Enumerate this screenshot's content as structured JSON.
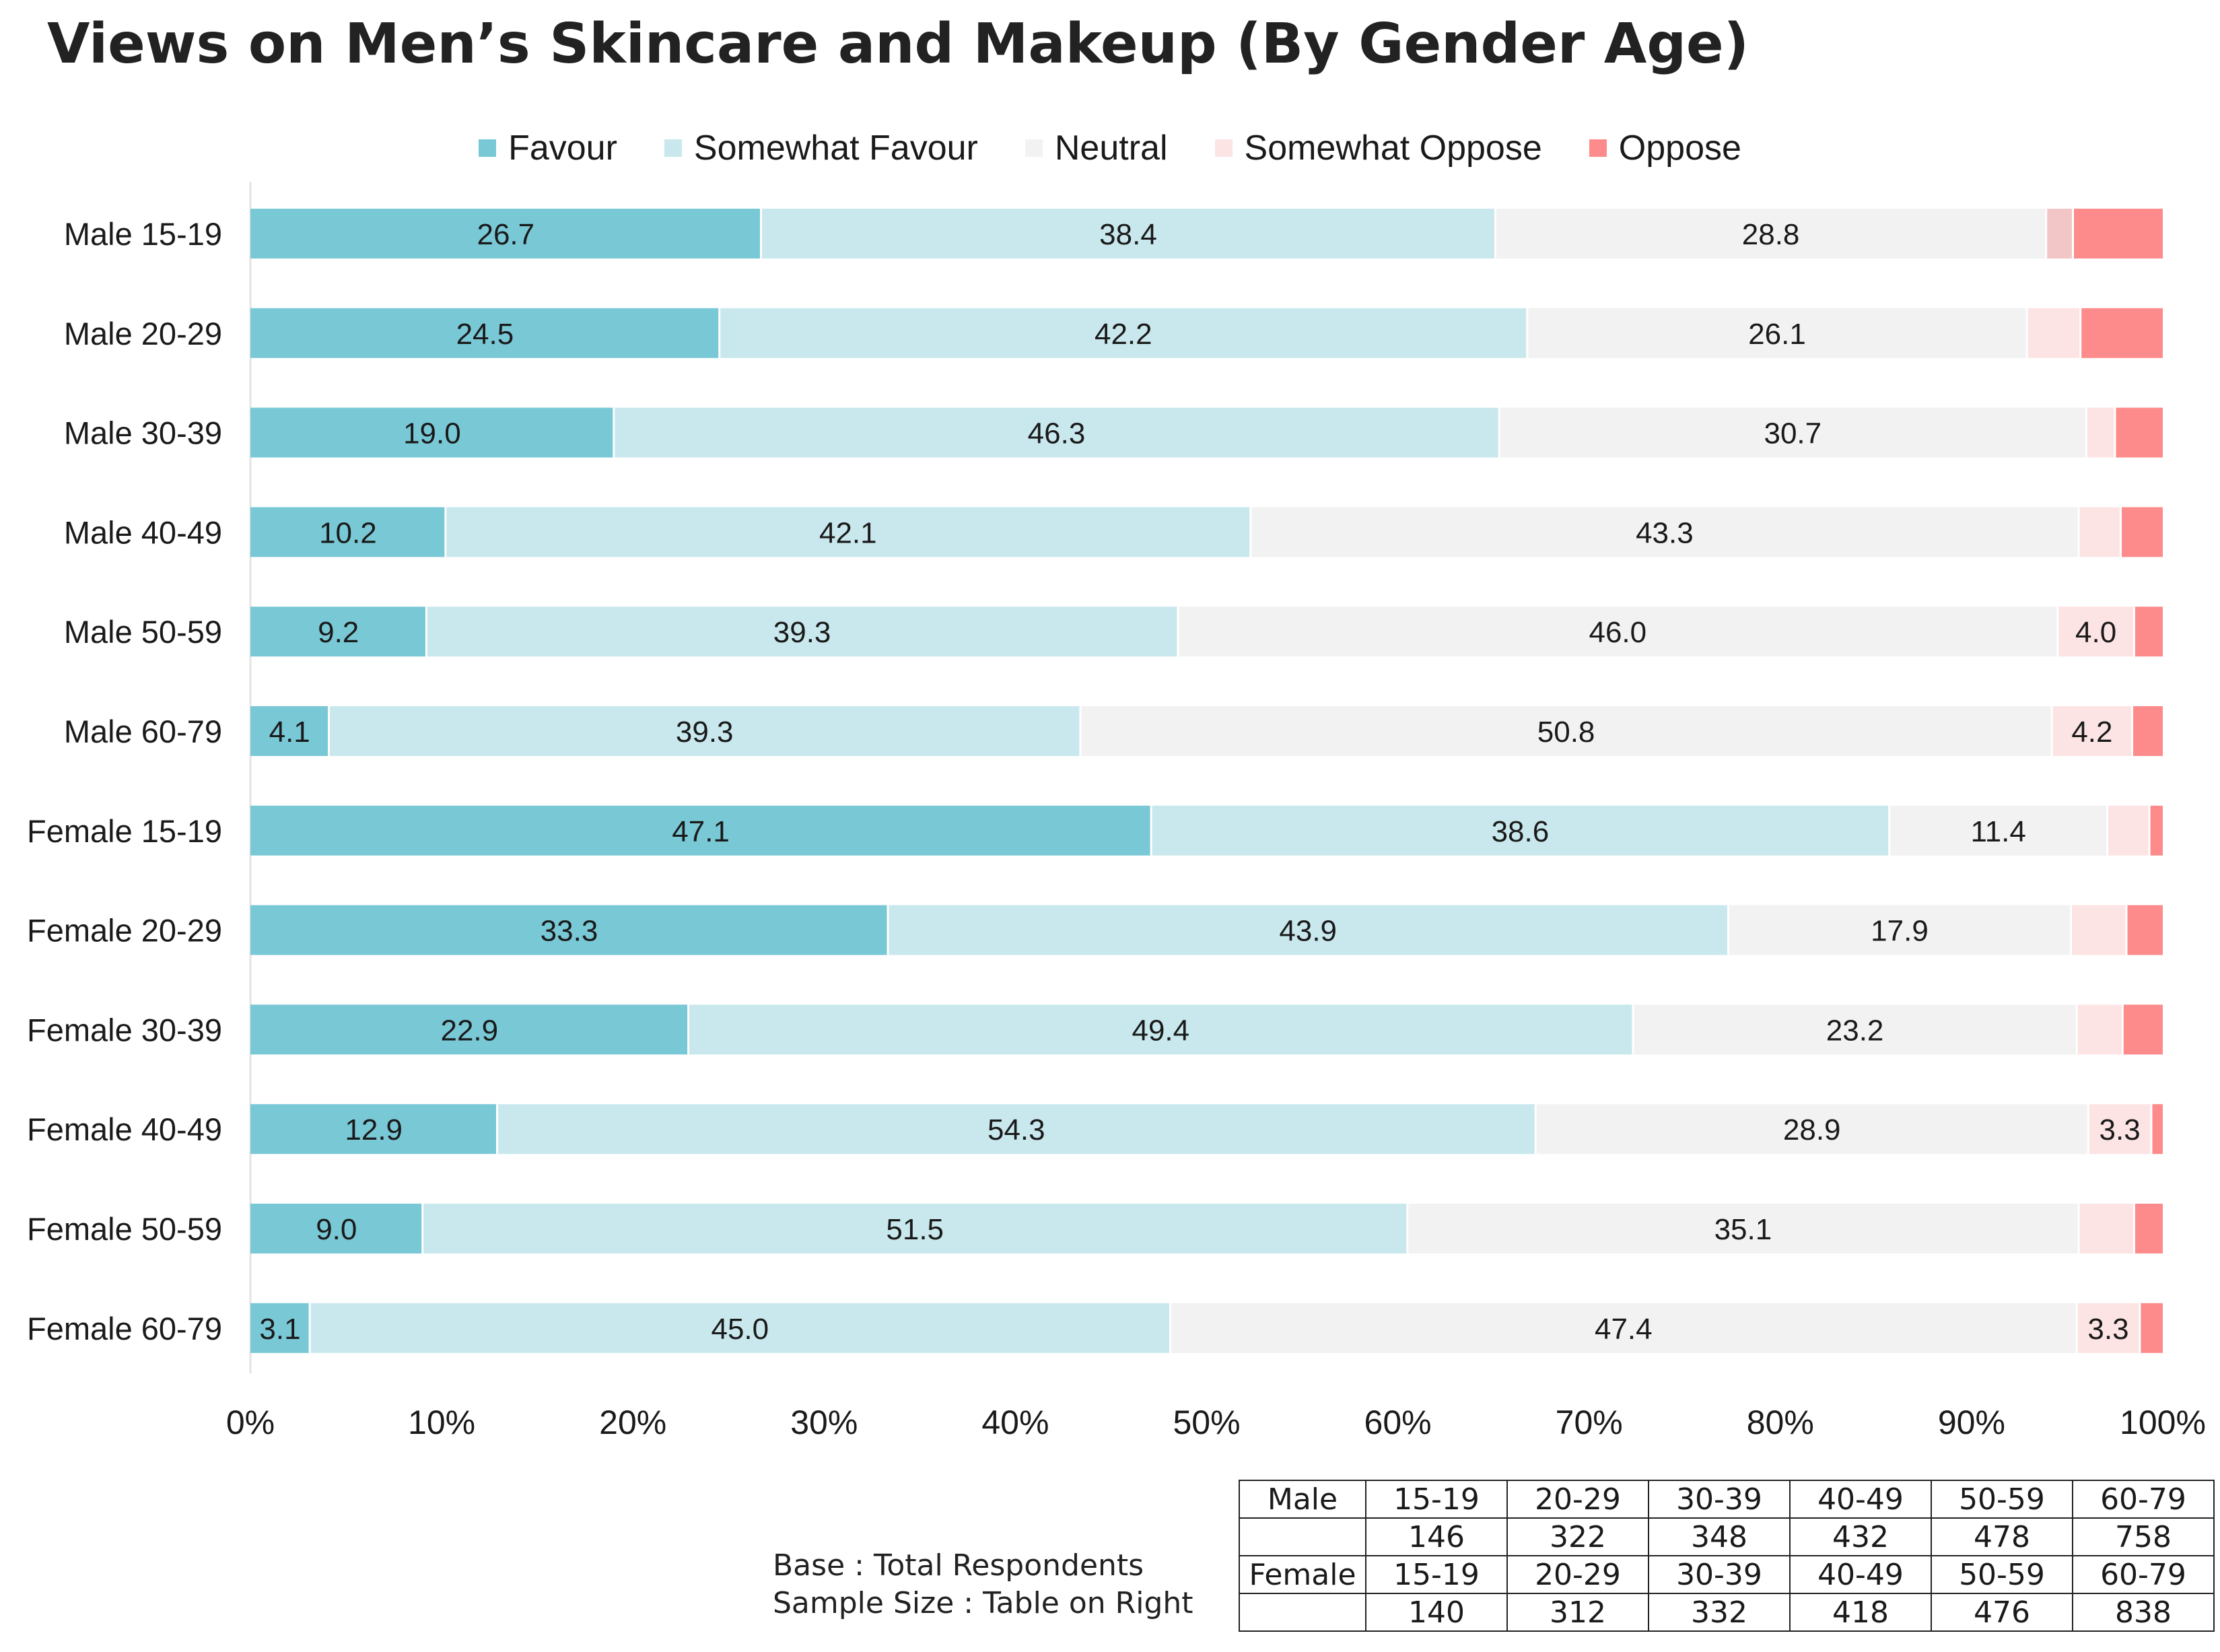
{
  "title": "Views on Men’s Skincare and Makeup (By Gender Age)",
  "colors": {
    "favour": "#79c8d6",
    "somewhat_favour": "#c9e8ed",
    "neutral": "#f2f2f2",
    "somewhat_oppose": "#fde4e4",
    "oppose": "#fd8b8b",
    "somewhat_oppose_row1": "#f2c6c6"
  },
  "chart_data": {
    "type": "bar",
    "orientation": "horizontal",
    "stacked": "percent",
    "title": "Views on Men’s Skincare and Makeup (By Gender Age)",
    "categories": [
      "Male 15-19",
      "Male 20-29",
      "Male 30-39",
      "Male 40-49",
      "Male 50-59",
      "Male 60-79",
      "Female 15-19",
      "Female 20-29",
      "Female 30-39",
      "Female 40-49",
      "Female 50-59",
      "Female 60-79"
    ],
    "series": [
      {
        "name": "Favour",
        "values": [
          26.7,
          24.5,
          19.0,
          10.2,
          9.2,
          4.1,
          47.1,
          33.3,
          22.9,
          12.9,
          9.0,
          3.1
        ]
      },
      {
        "name": "Somewhat Favour",
        "values": [
          38.4,
          42.2,
          46.3,
          42.1,
          39.3,
          39.3,
          38.6,
          43.9,
          49.4,
          54.3,
          51.5,
          45.0
        ]
      },
      {
        "name": "Neutral",
        "values": [
          28.8,
          26.1,
          30.7,
          43.3,
          46.0,
          50.8,
          11.4,
          17.9,
          23.2,
          28.9,
          35.1,
          47.4
        ]
      },
      {
        "name": "Somewhat Oppose",
        "values": [
          1.4,
          2.8,
          1.5,
          2.2,
          4.0,
          4.2,
          2.2,
          2.9,
          2.4,
          3.3,
          2.9,
          3.3
        ]
      },
      {
        "name": "Oppose",
        "values": [
          4.7,
          4.3,
          2.5,
          2.2,
          1.5,
          1.6,
          0.7,
          1.9,
          2.1,
          0.6,
          1.5,
          1.2
        ]
      }
    ],
    "data_labels": [
      [
        "26.7",
        "38.4",
        "28.8",
        "",
        ""
      ],
      [
        "24.5",
        "42.2",
        "26.1",
        "",
        ""
      ],
      [
        "19.0",
        "46.3",
        "30.7",
        "",
        ""
      ],
      [
        "10.2",
        "42.1",
        "43.3",
        "",
        ""
      ],
      [
        "9.2",
        "39.3",
        "46.0",
        "4.0",
        ""
      ],
      [
        "4.1",
        "39.3",
        "50.8",
        "4.2",
        ""
      ],
      [
        "47.1",
        "38.6",
        "11.4",
        "",
        ""
      ],
      [
        "33.3",
        "43.9",
        "17.9",
        "",
        ""
      ],
      [
        "22.9",
        "49.4",
        "23.2",
        "",
        ""
      ],
      [
        "12.9",
        "54.3",
        "28.9",
        "3.3",
        ""
      ],
      [
        "9.0",
        "51.5",
        "35.1",
        "",
        ""
      ],
      [
        "3.1",
        "45.0",
        "47.4",
        "3.3",
        ""
      ]
    ],
    "xlim": [
      0,
      100
    ],
    "x_ticks": [
      "0%",
      "10%",
      "20%",
      "30%",
      "40%",
      "50%",
      "60%",
      "70%",
      "80%",
      "90%",
      "100%"
    ],
    "legend": [
      "Favour",
      "Somewhat Favour",
      "Neutral",
      "Somewhat Oppose",
      "Oppose"
    ],
    "legend_position": "top-center"
  },
  "footnote": {
    "line1": "Base : Total Respondents",
    "line2": "Sample Size : Table on Right"
  },
  "sample_table": {
    "rows": [
      [
        "Male",
        "15-19",
        "20-29",
        "30-39",
        "40-49",
        "50-59",
        "60-79"
      ],
      [
        "",
        "146",
        "322",
        "348",
        "432",
        "478",
        "758"
      ],
      [
        "Female",
        "15-19",
        "20-29",
        "30-39",
        "40-49",
        "50-59",
        "60-79"
      ],
      [
        "",
        "140",
        "312",
        "332",
        "418",
        "476",
        "838"
      ]
    ]
  }
}
